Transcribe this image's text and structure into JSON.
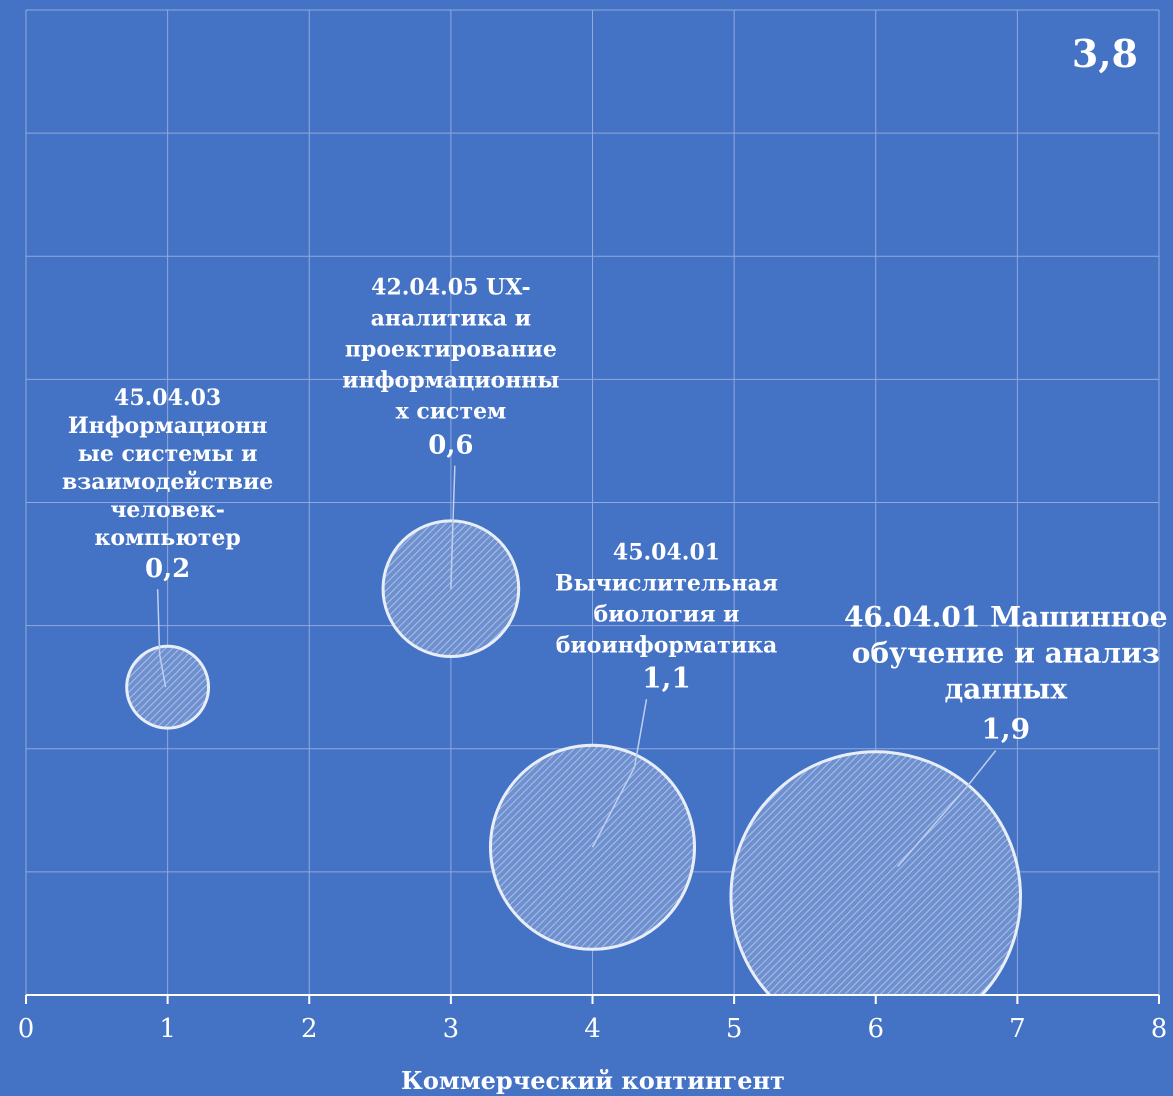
{
  "chart_data": {
    "type": "bubble",
    "xlabel": "Коммерческий контингент",
    "xlim": [
      0,
      8
    ],
    "x_ticks": [
      "0",
      "1",
      "2",
      "3",
      "4",
      "5",
      "6",
      "7",
      "8"
    ],
    "ylim": [
      0,
      8
    ],
    "grid": true,
    "corner_value": "3,8",
    "bubbles": [
      {
        "label_lines": [
          "45.04.03",
          "Информационн",
          "ые системы и",
          "взаимодействие",
          "человек-",
          "компьютер"
        ],
        "value_label": "0,2",
        "x": 1,
        "y": 2.5,
        "size": 0.2
      },
      {
        "label_lines": [
          "42.04.05 UX-",
          "аналитика и",
          "проектирование",
          "информационны",
          "х систем"
        ],
        "value_label": "0,6",
        "x": 3,
        "y": 3.3,
        "size": 0.6
      },
      {
        "label_lines": [
          "45.04.01",
          "Вычислительная",
          "биология и",
          "биоинформатика"
        ],
        "value_label": "1,1",
        "x": 4,
        "y": 1.2,
        "size": 1.1
      },
      {
        "label_lines": [
          "46.04.01 Машинное",
          "обучение и анализ",
          "данных"
        ],
        "value_label": "1,9",
        "x": 6,
        "y": 0.8,
        "size": 1.9
      }
    ],
    "colors": {
      "background": "#4472c4",
      "gridline": "#8faadc",
      "bubble_fill": "#7f9fd8",
      "bubble_border": "#e8eef8",
      "text": "#ffffff"
    }
  }
}
